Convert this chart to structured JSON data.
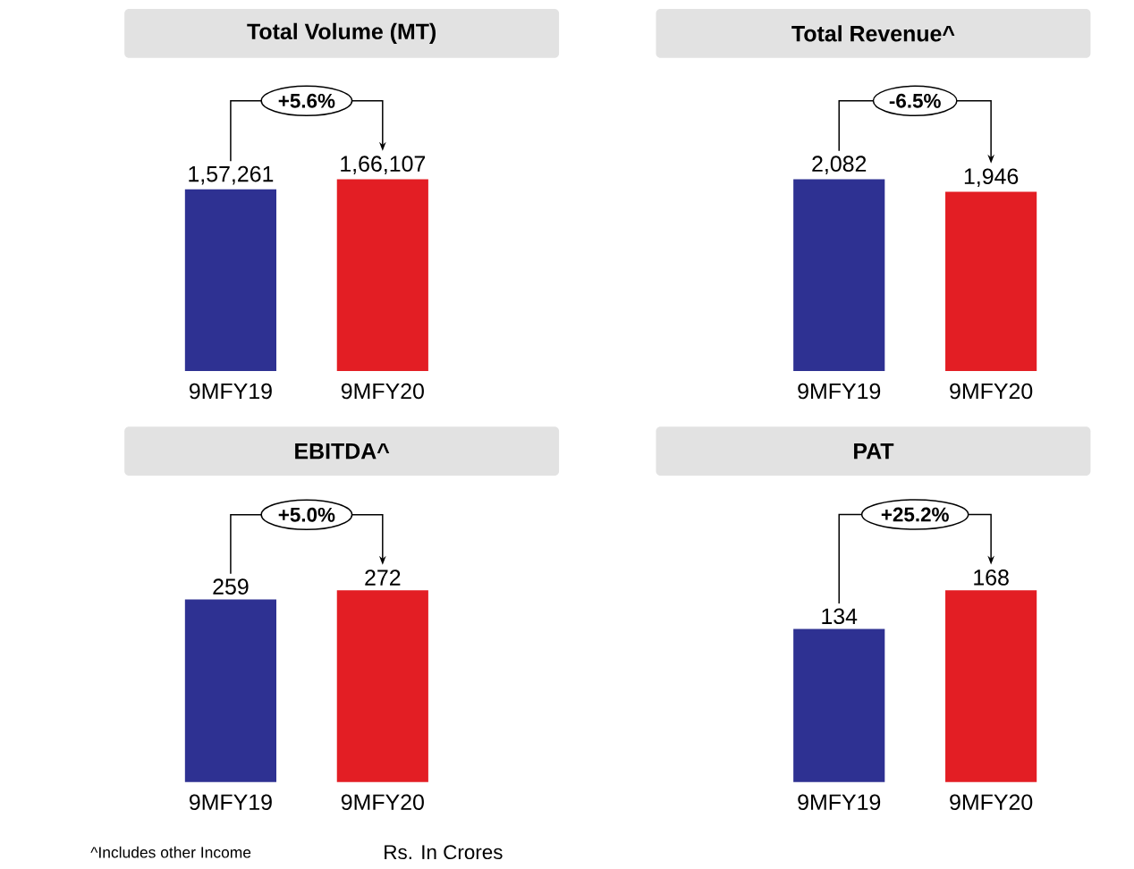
{
  "chart_data": [
    {
      "type": "bar",
      "title": "Total Volume (MT)",
      "categories": [
        "9MFY19",
        "9MFY20"
      ],
      "values": [
        157261,
        166107
      ],
      "value_labels": [
        "1,57,261",
        "1,66,107"
      ],
      "colors": [
        "#2e3192",
        "#e31e24"
      ],
      "annotations": [
        "+5.6%"
      ]
    },
    {
      "type": "bar",
      "title": "Total Revenue^",
      "categories": [
        "9MFY19",
        "9MFY20"
      ],
      "values": [
        2082,
        1946
      ],
      "value_labels": [
        "2,082",
        "1,946"
      ],
      "colors": [
        "#2e3192",
        "#e31e24"
      ],
      "annotations": [
        "-6.5%"
      ]
    },
    {
      "type": "bar",
      "title": "EBITDA^",
      "categories": [
        "9MFY19",
        "9MFY20"
      ],
      "values": [
        259,
        272
      ],
      "value_labels": [
        "259",
        "272"
      ],
      "colors": [
        "#2e3192",
        "#e31e24"
      ],
      "annotations": [
        "+5.0%",
        "^Includes other Income",
        "Rs. In Crores"
      ]
    },
    {
      "type": "bar",
      "title": "PAT",
      "categories": [
        "9MFY19",
        "9MFY20"
      ],
      "values": [
        134,
        168
      ],
      "value_labels": [
        "134",
        "168"
      ],
      "colors": [
        "#2e3192",
        "#e31e24"
      ],
      "annotations": [
        "+25.2%"
      ]
    }
  ]
}
